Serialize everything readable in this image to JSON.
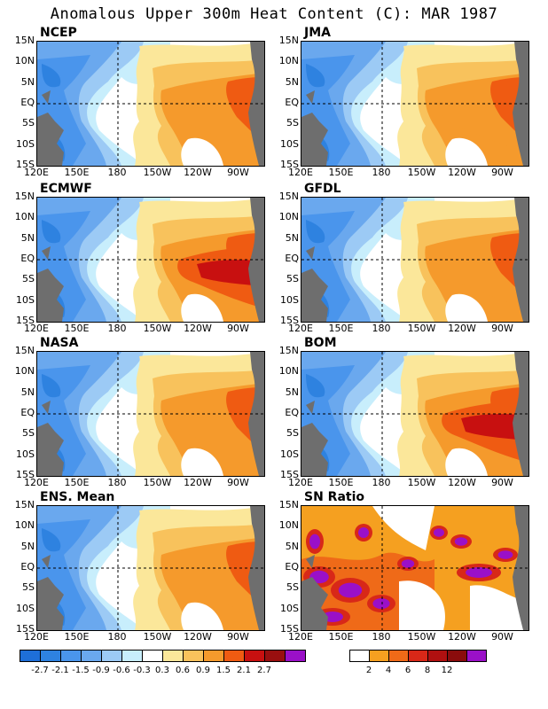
{
  "title": "Anomalous Upper 300m Heat Content (C): MAR 1987",
  "panels": [
    {
      "title": "NCEP",
      "scheme": "anom",
      "pattern": "moderate"
    },
    {
      "title": "JMA",
      "scheme": "anom",
      "pattern": "moderate"
    },
    {
      "title": "ECMWF",
      "scheme": "anom",
      "pattern": "strong"
    },
    {
      "title": "GFDL",
      "scheme": "anom",
      "pattern": "moderate"
    },
    {
      "title": "NASA",
      "scheme": "anom",
      "pattern": "moderate"
    },
    {
      "title": "BOM",
      "scheme": "anom",
      "pattern": "strong"
    },
    {
      "title": "ENS. Mean",
      "scheme": "anom",
      "pattern": "moderate"
    },
    {
      "title": "SN Ratio",
      "scheme": "snr",
      "pattern": "noisy"
    }
  ],
  "lat_labels": [
    "15N",
    "10N",
    "5N",
    "EQ",
    "5S",
    "10S",
    "15S"
  ],
  "lon_labels": [
    "120E",
    "150E",
    "180",
    "150W",
    "120W",
    "90W"
  ],
  "anom_colorbar": {
    "colors": [
      "#1e6fd8",
      "#2e82e0",
      "#4a95ec",
      "#6aa8ee",
      "#9ccaf5",
      "#c8eefc",
      "#ffffff",
      "#fbe79a",
      "#f8c25c",
      "#f59a2c",
      "#ef5b12",
      "#c81010",
      "#990f0f",
      "#9a10c8"
    ],
    "labels": [
      "-2.7",
      "-2.1",
      "-1.5",
      "-0.9",
      "-0.6",
      "-0.3",
      "0.3",
      "0.6",
      "0.9",
      "1.5",
      "2.1",
      "2.7"
    ]
  },
  "snr_colorbar": {
    "colors": [
      "#ffffff",
      "#f5a020",
      "#ef6a18",
      "#d82818",
      "#b01010",
      "#8a0c0c",
      "#9a10c8"
    ],
    "labels": [
      "2",
      "4",
      "6",
      "8",
      "12"
    ]
  },
  "colors": {
    "land": "#6e6e6e",
    "background": "#ffffff"
  }
}
